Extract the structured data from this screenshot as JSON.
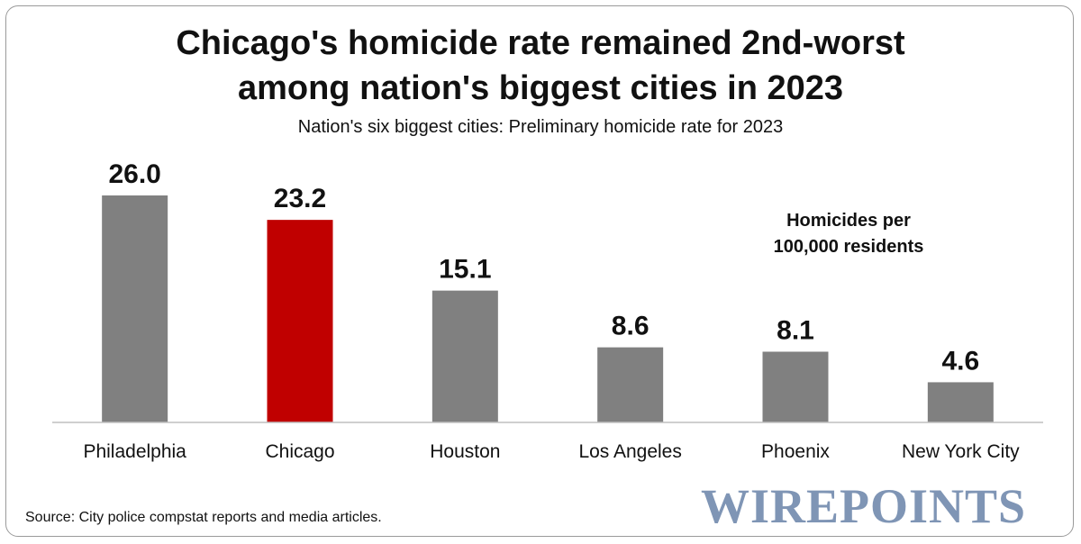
{
  "chart_data": {
    "type": "bar",
    "title_line1": "Chicago's homicide rate remained 2nd-worst",
    "title_line2": "among nation's biggest cities in 2023",
    "subtitle": "Nation's six biggest cities: Preliminary homicide rate for 2023",
    "categories": [
      "Philadelphia",
      "Chicago",
      "Houston",
      "Los Angeles",
      "Phoenix",
      "New York City"
    ],
    "values": [
      26.0,
      23.2,
      15.1,
      8.6,
      8.1,
      4.6
    ],
    "value_labels": [
      "26.0",
      "23.2",
      "15.1",
      "8.6",
      "8.1",
      "4.6"
    ],
    "annotation_line1": "Homicides per",
    "annotation_line2": "100,000 residents",
    "ylim": [
      0,
      26.0
    ],
    "grid": false,
    "legend": "none",
    "colors": {
      "default": "#808080",
      "highlight": "#c00000",
      "highlight_category": "Chicago",
      "baseline": "#bfbfbf"
    }
  },
  "source": "Source: City police compstat reports and media articles.",
  "logo_text": "WIREPOINTS"
}
